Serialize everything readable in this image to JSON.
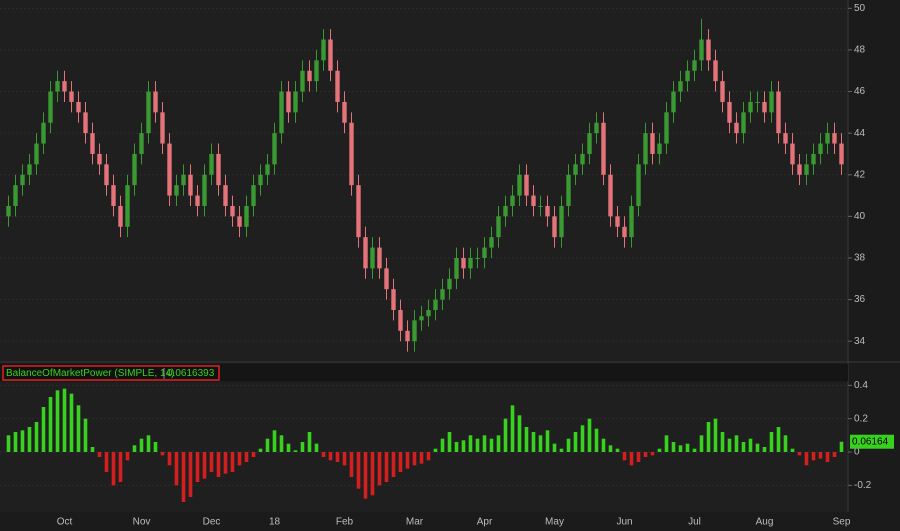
{
  "chart_data": [
    {
      "type": "candlestick",
      "categories": [
        null,
        null,
        null,
        null,
        null,
        null,
        null,
        null,
        "Oct",
        null,
        null,
        null,
        null,
        null,
        null,
        null,
        null,
        null,
        null,
        "Nov",
        null,
        null,
        null,
        null,
        null,
        null,
        null,
        null,
        null,
        "Dec",
        null,
        null,
        null,
        null,
        null,
        null,
        null,
        null,
        "18",
        null,
        null,
        null,
        null,
        null,
        null,
        null,
        null,
        null,
        "Feb",
        null,
        null,
        null,
        null,
        null,
        null,
        null,
        null,
        null,
        "Mar",
        null,
        null,
        null,
        null,
        null,
        null,
        null,
        null,
        null,
        "Apr",
        null,
        null,
        null,
        null,
        null,
        null,
        null,
        null,
        null,
        "May",
        null,
        null,
        null,
        null,
        null,
        null,
        null,
        null,
        null,
        "Jun",
        null,
        null,
        null,
        null,
        null,
        null,
        null,
        null,
        null,
        "Jul",
        null,
        null,
        null,
        null,
        null,
        null,
        null,
        null,
        null,
        "Aug",
        null,
        null,
        null,
        null,
        null,
        null,
        null,
        null,
        null,
        null,
        "Sep"
      ],
      "open": [
        40,
        40.5,
        41.5,
        42,
        42.5,
        43.5,
        44.5,
        46,
        46.5,
        46,
        45.5,
        45,
        44,
        43,
        42.5,
        41.5,
        40.5,
        39.5,
        41.5,
        43,
        44,
        46,
        45,
        43.5,
        41,
        41.5,
        42,
        41,
        40.5,
        42,
        43,
        41.5,
        40.5,
        40,
        39.5,
        40.5,
        41.5,
        42,
        42.5,
        44,
        46,
        45,
        46,
        47,
        46.5,
        47.5,
        48.5,
        47,
        45.5,
        44.5,
        41.5,
        39,
        37.5,
        38.5,
        37.5,
        36.5,
        35.5,
        34.5,
        34,
        35,
        35.2,
        35.5,
        36,
        36.5,
        37,
        38,
        37.5,
        38,
        38,
        38.5,
        39,
        40,
        40.5,
        41,
        42,
        41,
        40.5,
        40.5,
        40,
        39,
        40.5,
        42,
        42.5,
        43,
        44,
        44.5,
        42,
        40,
        39.5,
        39,
        40.5,
        42.5,
        44,
        43,
        43.5,
        45,
        46,
        46.5,
        47,
        47.5,
        48.5,
        47.5,
        46.5,
        45.5,
        44.5,
        44,
        45,
        45.5,
        45.5,
        45,
        46,
        44,
        43.5,
        42.5,
        42,
        42.5,
        43,
        43.5,
        44,
        43.5
      ],
      "high": [
        41,
        42,
        42.5,
        43,
        44,
        45,
        46.5,
        47,
        47,
        46.5,
        46,
        45.5,
        44.5,
        43.5,
        43,
        42,
        41,
        42,
        43.5,
        44.5,
        46.5,
        46.5,
        45.5,
        44,
        42,
        42.5,
        42.5,
        41.5,
        42.5,
        43.5,
        43.5,
        42,
        41,
        40.5,
        41,
        42,
        42.5,
        43,
        44.5,
        46.5,
        46.5,
        46.5,
        47.5,
        47.5,
        48,
        49,
        49,
        47.5,
        46,
        45,
        42,
        39.5,
        39,
        39,
        38,
        37,
        36,
        35,
        35.5,
        35.7,
        36,
        36.5,
        37,
        37.5,
        38.5,
        38.5,
        38.5,
        38.5,
        39,
        39.5,
        40.5,
        41,
        41.5,
        42.5,
        42.5,
        41.5,
        41,
        41,
        40.5,
        41,
        42.5,
        43,
        43.5,
        44.5,
        45,
        45,
        42.5,
        40.5,
        40,
        41,
        43,
        44.5,
        44.5,
        44,
        45.5,
        46.5,
        47,
        47.5,
        48,
        49.5,
        49,
        48,
        47,
        46,
        45,
        45.5,
        46,
        46,
        46,
        46.5,
        46.5,
        44.5,
        44,
        43,
        43,
        43.5,
        44,
        44.5,
        44.5,
        44
      ],
      "low": [
        39.5,
        40,
        41,
        41.5,
        42,
        43,
        44,
        45.5,
        45.5,
        45,
        44.5,
        43.5,
        42.5,
        42,
        41,
        40,
        39,
        39,
        41,
        42.5,
        43.5,
        44.5,
        43,
        40.5,
        40.5,
        41,
        40.5,
        40,
        40,
        41.5,
        41,
        40,
        39.5,
        39,
        39,
        40,
        41,
        41.5,
        42,
        43.5,
        44.5,
        44.5,
        45.5,
        46,
        46,
        47,
        46.5,
        45,
        44,
        41,
        38.5,
        37,
        37,
        37,
        36,
        35,
        34,
        33.5,
        33.5,
        34.5,
        34.7,
        35,
        35.5,
        36,
        36.5,
        37,
        37,
        37.5,
        37.5,
        38,
        38.5,
        39.5,
        40,
        40.5,
        40.5,
        40,
        40,
        39.5,
        38.5,
        38.5,
        40,
        41.5,
        42,
        42.5,
        43.5,
        41.5,
        39.5,
        39,
        38.5,
        38.5,
        40,
        42,
        42.5,
        42.5,
        43,
        44.5,
        45.5,
        46,
        46.5,
        47,
        47,
        46,
        45,
        44,
        43.5,
        43.5,
        44.5,
        45,
        44.5,
        44.5,
        43.5,
        43,
        42,
        41.5,
        41.5,
        42,
        42.5,
        43,
        43,
        42
      ],
      "close": [
        40.5,
        41.5,
        42,
        42.5,
        43.5,
        44.5,
        46,
        46.5,
        46,
        45.5,
        45,
        44,
        43,
        42.5,
        41.5,
        40.5,
        39.5,
        41.5,
        43,
        44,
        46,
        45,
        43.5,
        41,
        41.5,
        42,
        41,
        40.5,
        42,
        43,
        41.5,
        40.5,
        40,
        39.5,
        40.5,
        41.5,
        42,
        42.5,
        44,
        46,
        45,
        46,
        47,
        46.5,
        47.5,
        48.5,
        47,
        45.5,
        44.5,
        41.5,
        39,
        37.5,
        38.5,
        37.5,
        36.5,
        35.5,
        34.5,
        34,
        35,
        35.2,
        35.5,
        36,
        36.5,
        37,
        38,
        37.5,
        38,
        38,
        38.5,
        39,
        40,
        40.5,
        41,
        42,
        41,
        40.5,
        40.5,
        40,
        39,
        40.5,
        42,
        42.5,
        43,
        44,
        44.5,
        42,
        40,
        39.5,
        39,
        40.5,
        42.5,
        44,
        43,
        43.5,
        45,
        46,
        46.5,
        47,
        47.5,
        48.5,
        47.5,
        46.5,
        45.5,
        44.5,
        44,
        45,
        45.5,
        45.5,
        45,
        46,
        44,
        43.5,
        42.5,
        42,
        42.5,
        43,
        43.5,
        44,
        43.5,
        42.5
      ],
      "up_color": "#3a9a32",
      "down_color": "#e5737a",
      "ylim": [
        33.0,
        50.4
      ],
      "yticks": [
        34,
        36,
        38,
        40,
        42,
        44,
        46,
        48,
        50
      ],
      "grid": true
    },
    {
      "type": "bar",
      "title": "BalanceOfMarketPower (SIMPLE, 14)",
      "current_label": "0.06164",
      "values": [
        0.1,
        0.12,
        0.13,
        0.15,
        0.18,
        0.27,
        0.33,
        0.37,
        0.38,
        0.35,
        0.28,
        0.2,
        0.03,
        -0.03,
        -0.12,
        -0.2,
        -0.18,
        -0.05,
        0.04,
        0.08,
        0.1,
        0.06,
        -0.02,
        -0.08,
        -0.2,
        -0.3,
        -0.27,
        -0.18,
        -0.16,
        -0.12,
        -0.15,
        -0.13,
        -0.12,
        -0.08,
        -0.06,
        -0.03,
        0.02,
        0.08,
        0.13,
        0.1,
        0.05,
        0.01,
        0.06,
        0.12,
        0.05,
        -0.03,
        -0.05,
        -0.06,
        -0.08,
        -0.15,
        -0.22,
        -0.28,
        -0.26,
        -0.2,
        -0.18,
        -0.15,
        -0.12,
        -0.1,
        -0.08,
        -0.07,
        -0.05,
        0.02,
        0.08,
        0.12,
        0.06,
        0.07,
        0.1,
        0.08,
        0.1,
        0.08,
        0.1,
        0.2,
        0.28,
        0.22,
        0.15,
        0.12,
        0.1,
        0.13,
        0.05,
        0.02,
        0.08,
        0.12,
        0.16,
        0.2,
        0.14,
        0.08,
        0.04,
        0.02,
        -0.05,
        -0.08,
        -0.06,
        -0.03,
        -0.02,
        0.02,
        0.1,
        0.06,
        0.04,
        0.05,
        0.02,
        0.1,
        0.18,
        0.2,
        0.12,
        0.08,
        0.1,
        0.06,
        0.08,
        0.05,
        0.03,
        0.12,
        0.15,
        0.1,
        0.02,
        -0.02,
        -0.08,
        -0.05,
        -0.04,
        -0.06,
        -0.03,
        0.0616393
      ],
      "up_color": "#39d11f",
      "down_color": "#d41f1f",
      "ylim": [
        -0.36,
        0.42
      ],
      "yticks": [
        -0.2,
        0,
        0.2,
        0.4
      ]
    }
  ]
}
